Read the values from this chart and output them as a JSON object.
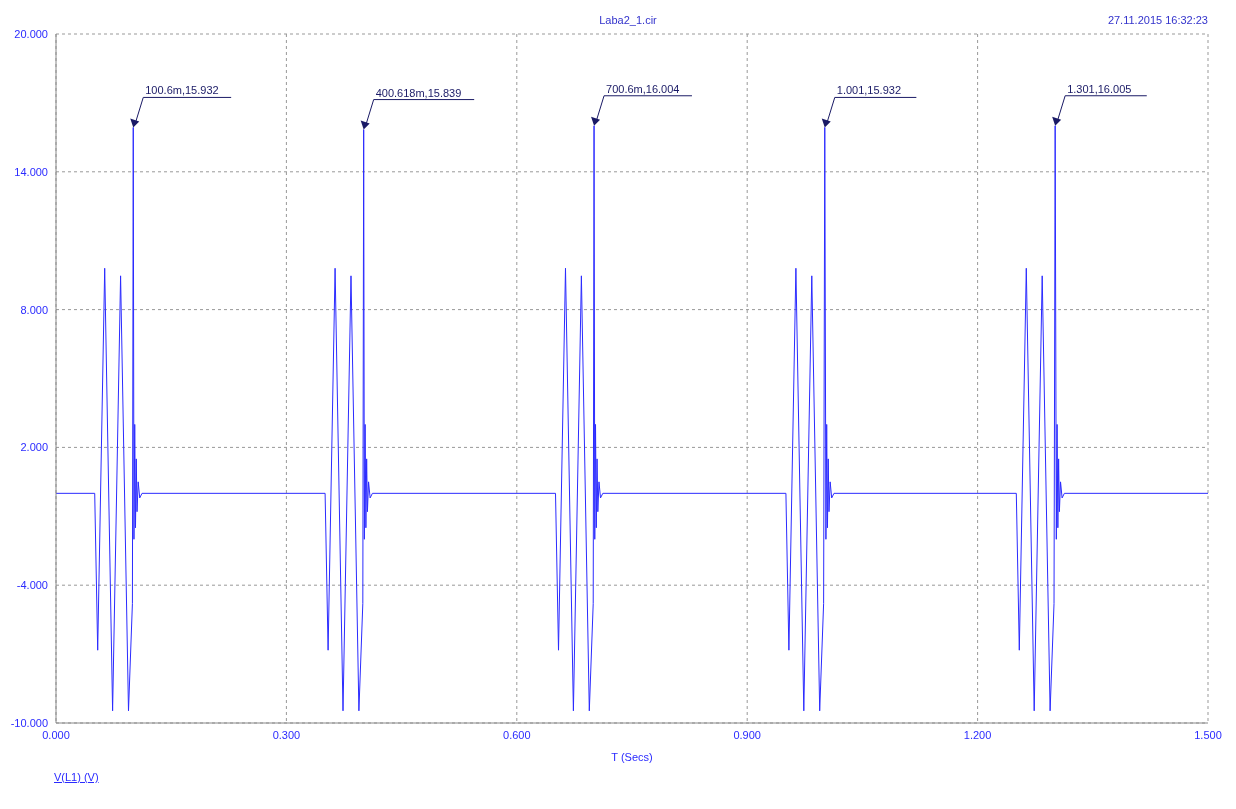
{
  "chart_data": {
    "type": "line",
    "title": "Laba2_1.cir",
    "xlabel": "T (Secs)",
    "xlim": [
      0,
      1.5
    ],
    "xticks": [
      {
        "value": 0,
        "label": "0.000"
      },
      {
        "value": 0.3,
        "label": "0.300"
      },
      {
        "value": 0.6,
        "label": "0.600"
      },
      {
        "value": 0.9,
        "label": "0.900"
      },
      {
        "value": 1.2,
        "label": "1.200"
      },
      {
        "value": 1.5,
        "label": "1.500"
      }
    ],
    "ylim": [
      -10,
      20
    ],
    "yticks": [
      {
        "value": -10,
        "label": "-10.000"
      },
      {
        "value": -4,
        "label": "-4.000"
      },
      {
        "value": 2,
        "label": "2.000"
      },
      {
        "value": 8,
        "label": "8.000"
      },
      {
        "value": 14,
        "label": "14.000"
      },
      {
        "value": 20,
        "label": "20.000"
      }
    ],
    "grid": true,
    "legend": "bottom left",
    "line_style": "solid",
    "series": [
      {
        "name": "V(L1) (V)",
        "color": "#2b2bff",
        "x": [
          0,
          0.0504,
          0.0543,
          0.0634,
          0.0737,
          0.0841,
          0.0944,
          0.0995,
          0.1006,
          0.1015,
          0.1025,
          0.1035,
          0.1045,
          0.1055,
          0.107,
          0.109,
          0.112,
          0.3504,
          0.3543,
          0.3634,
          0.3737,
          0.3841,
          0.3944,
          0.3995,
          0.400618,
          0.4015,
          0.4025,
          0.4035,
          0.4045,
          0.4055,
          0.407,
          0.409,
          0.412,
          0.6504,
          0.6543,
          0.6634,
          0.6737,
          0.6841,
          0.6944,
          0.6995,
          0.7006,
          0.7015,
          0.7025,
          0.7035,
          0.7045,
          0.7055,
          0.707,
          0.709,
          0.712,
          0.9504,
          0.9543,
          0.9634,
          0.9737,
          0.9841,
          0.9944,
          0.9995,
          1.001,
          1.0025,
          1.0035,
          1.0045,
          1.0055,
          1.0065,
          1.008,
          1.01,
          1.013,
          1.2504,
          1.2543,
          1.2634,
          1.2737,
          1.2841,
          1.2944,
          1.2995,
          1.301,
          1.3025,
          1.3035,
          1.3045,
          1.3055,
          1.3065,
          1.308,
          1.31,
          1.313,
          1.5
        ],
        "values": [
          0,
          0,
          -6.83,
          9.8,
          -9.47,
          9.47,
          -9.47,
          -4.8,
          15.932,
          -2,
          3,
          -1.5,
          1.5,
          -0.8,
          0.5,
          -0.2,
          0,
          0,
          -6.83,
          9.8,
          -9.47,
          9.47,
          -9.47,
          -4.8,
          15.839,
          -2,
          3,
          -1.5,
          1.5,
          -0.8,
          0.5,
          -0.2,
          0,
          0,
          -6.83,
          9.8,
          -9.47,
          9.47,
          -9.47,
          -4.8,
          16.004,
          -2,
          3,
          -1.5,
          1.5,
          -0.8,
          0.5,
          -0.2,
          0,
          0,
          -6.83,
          9.8,
          -9.47,
          9.47,
          -9.47,
          -4.8,
          15.932,
          -2,
          3,
          -1.5,
          1.5,
          -0.8,
          0.5,
          -0.2,
          0,
          0,
          -6.83,
          9.8,
          -9.47,
          9.47,
          -9.47,
          -4.8,
          16.005,
          -2,
          3,
          -1.5,
          1.5,
          -0.8,
          0.5,
          -0.2,
          0,
          0
        ]
      }
    ],
    "annotations": [
      "27.11.2015 16:32:23",
      {
        "text": "100.6m,15.932",
        "x": 0.1006,
        "y": 15.932
      },
      {
        "text": "400.618m,15.839",
        "x": 0.400618,
        "y": 15.839
      },
      {
        "text": "700.6m,16.004",
        "x": 0.7006,
        "y": 16.004
      },
      {
        "text": "1.001,15.932",
        "x": 1.001,
        "y": 15.932
      },
      {
        "text": "1.301,16.005",
        "x": 1.301,
        "y": 16.005
      }
    ]
  }
}
